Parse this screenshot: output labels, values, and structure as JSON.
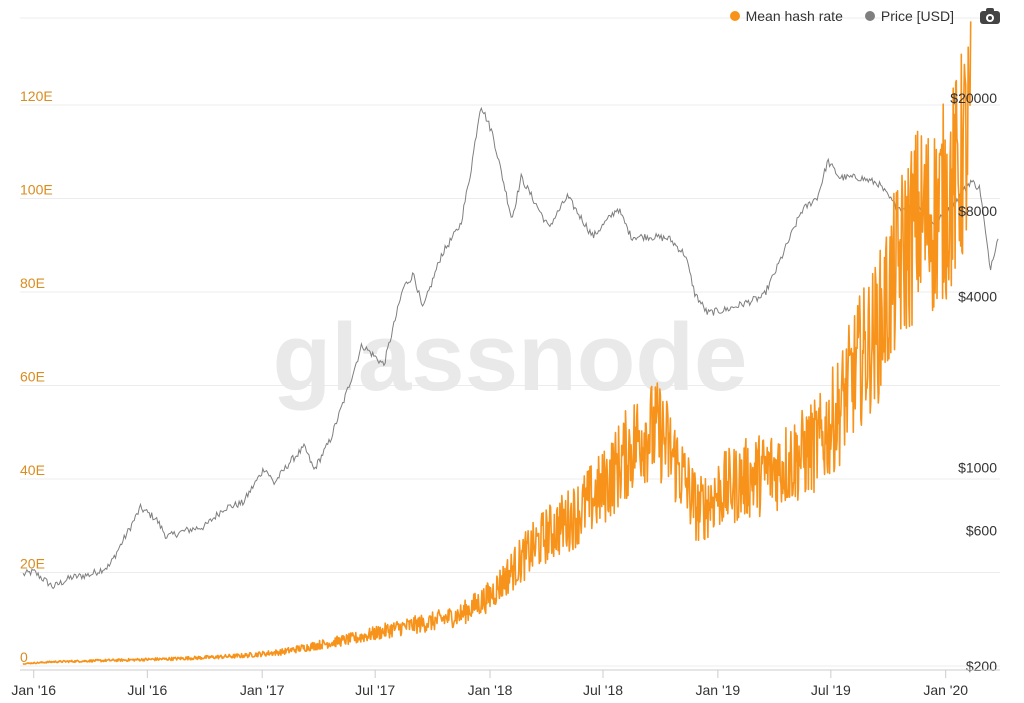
{
  "legend": {
    "items": [
      {
        "label": "Mean hash rate",
        "color": "#f7931a"
      },
      {
        "label": "Price [USD]",
        "color": "#7f7f7f"
      }
    ],
    "camera_icon": "camera-icon"
  },
  "watermark": "glassnode",
  "chart_data": {
    "type": "line",
    "x_ticks": [
      "Jan '16",
      "Jul '16",
      "Jan '17",
      "Jul '17",
      "Jan '18",
      "Jul '18",
      "Jan '19",
      "Jul '19",
      "Jan '20"
    ],
    "y_left": {
      "ticks": [
        "0",
        "20E",
        "40E",
        "60E",
        "80E",
        "100E",
        "120E"
      ],
      "range": [
        0,
        120
      ]
    },
    "y_right": {
      "ticks": [
        "$200",
        "$600",
        "$1000",
        "$4000",
        "$8000",
        "$20000"
      ],
      "scale": "log",
      "range": [
        200,
        20000
      ]
    },
    "grid": true,
    "legend_position": "top-right",
    "series": [
      {
        "name": "Mean hash rate",
        "axis": "left",
        "color": "#f7931a",
        "x": [
          "2015-12-15",
          "2016-02-01",
          "2016-04-01",
          "2016-06-01",
          "2016-08-01",
          "2016-10-01",
          "2016-12-01",
          "2017-02-01",
          "2017-04-01",
          "2017-06-01",
          "2017-08-01",
          "2017-10-01",
          "2017-11-15",
          "2018-01-01",
          "2018-02-15",
          "2018-04-01",
          "2018-05-15",
          "2018-07-01",
          "2018-08-01",
          "2018-09-01",
          "2018-10-01",
          "2018-11-01",
          "2018-12-01",
          "2019-01-01",
          "2019-02-15",
          "2019-04-01",
          "2019-05-15",
          "2019-06-15",
          "2019-07-15",
          "2019-08-15",
          "2019-09-15",
          "2019-10-15",
          "2019-11-15",
          "2019-12-15",
          "2020-01-15",
          "2020-02-10"
        ],
        "values": [
          0.5,
          0.9,
          1.1,
          1.3,
          1.5,
          1.8,
          2.2,
          3.0,
          4.5,
          6.0,
          8.0,
          9.5,
          11.0,
          15.0,
          22.0,
          28.0,
          32.0,
          38.0,
          44.0,
          50.0,
          50.0,
          42.0,
          33.0,
          37.0,
          40.0,
          42.0,
          45.0,
          48.0,
          55.0,
          65.0,
          72.0,
          85.0,
          95.0,
          96.0,
          103.0,
          115.0
        ]
      },
      {
        "name": "Price [USD]",
        "axis": "right",
        "color": "#7f7f7f",
        "x": [
          "2015-12-15",
          "2016-01-01",
          "2016-02-01",
          "2016-03-01",
          "2016-04-01",
          "2016-05-01",
          "2016-06-01",
          "2016-06-20",
          "2016-07-15",
          "2016-08-01",
          "2016-09-01",
          "2016-10-01",
          "2016-11-01",
          "2016-12-01",
          "2017-01-05",
          "2017-01-20",
          "2017-02-15",
          "2017-03-10",
          "2017-03-25",
          "2017-04-20",
          "2017-05-15",
          "2017-06-10",
          "2017-07-15",
          "2017-08-15",
          "2017-09-01",
          "2017-09-15",
          "2017-10-15",
          "2017-11-01",
          "2017-11-15",
          "2017-12-01",
          "2017-12-17",
          "2018-01-05",
          "2018-02-05",
          "2018-02-20",
          "2018-03-15",
          "2018-04-05",
          "2018-05-05",
          "2018-06-15",
          "2018-07-25",
          "2018-08-15",
          "2018-09-15",
          "2018-10-15",
          "2018-11-10",
          "2018-11-25",
          "2018-12-15",
          "2019-01-15",
          "2019-02-15",
          "2019-03-15",
          "2019-04-05",
          "2019-05-15",
          "2019-06-10",
          "2019-06-26",
          "2019-07-15",
          "2019-08-15",
          "2019-09-15",
          "2019-10-15",
          "2019-11-15",
          "2019-12-15",
          "2020-01-15",
          "2020-02-10",
          "2020-02-25",
          "2020-03-12",
          "2020-03-25"
        ],
        "values": [
          420,
          430,
          380,
          410,
          420,
          450,
          600,
          720,
          660,
          570,
          600,
          620,
          720,
          750,
          1000,
          880,
          1050,
          1180,
          980,
          1250,
          1800,
          2700,
          2300,
          4300,
          4800,
          3600,
          5600,
          6400,
          7200,
          11000,
          19000,
          15000,
          7500,
          10500,
          8500,
          7000,
          9000,
          6500,
          8200,
          6500,
          6500,
          6400,
          5600,
          4100,
          3500,
          3600,
          3800,
          4000,
          5000,
          8000,
          9000,
          12000,
          10500,
          10500,
          10000,
          8200,
          8500,
          7200,
          8500,
          10200,
          9600,
          5000,
          6500
        ]
      }
    ]
  }
}
